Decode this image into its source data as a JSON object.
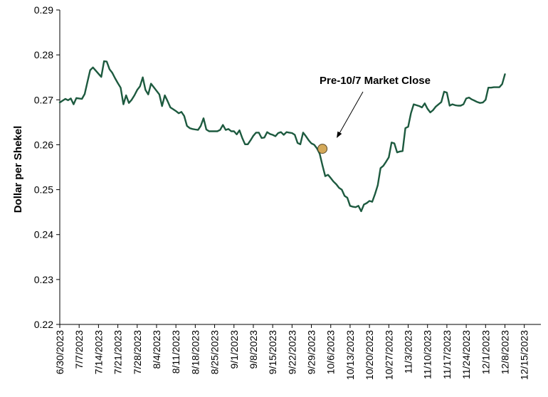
{
  "chart_data": {
    "type": "line",
    "ylabel": "Dollar per Shekel",
    "ylim": [
      0.22,
      0.29
    ],
    "yticks": [
      "0.22",
      "0.23",
      "0.24",
      "0.25",
      "0.26",
      "0.27",
      "0.28",
      "0.29"
    ],
    "x_range": [
      "2023-06-30",
      "2023-12-21"
    ],
    "xticks": [
      {
        "date": "2023-06-30",
        "label": "6/30/2023"
      },
      {
        "date": "2023-07-07",
        "label": "7/7/2023"
      },
      {
        "date": "2023-07-14",
        "label": "7/14/2023"
      },
      {
        "date": "2023-07-21",
        "label": "7/21/2023"
      },
      {
        "date": "2023-07-28",
        "label": "7/28/2023"
      },
      {
        "date": "2023-08-04",
        "label": "8/4/2023"
      },
      {
        "date": "2023-08-11",
        "label": "8/11/2023"
      },
      {
        "date": "2023-08-18",
        "label": "8/18/2023"
      },
      {
        "date": "2023-08-25",
        "label": "8/25/2023"
      },
      {
        "date": "2023-09-01",
        "label": "9/1/2023"
      },
      {
        "date": "2023-09-08",
        "label": "9/8/2023"
      },
      {
        "date": "2023-09-15",
        "label": "9/15/2023"
      },
      {
        "date": "2023-09-22",
        "label": "9/22/2023"
      },
      {
        "date": "2023-09-29",
        "label": "9/29/2023"
      },
      {
        "date": "2023-10-06",
        "label": "10/6/2023"
      },
      {
        "date": "2023-10-13",
        "label": "10/13/2023"
      },
      {
        "date": "2023-10-20",
        "label": "10/20/2023"
      },
      {
        "date": "2023-10-27",
        "label": "10/27/2023"
      },
      {
        "date": "2023-11-03",
        "label": "11/3/2023"
      },
      {
        "date": "2023-11-10",
        "label": "11/10/2023"
      },
      {
        "date": "2023-11-17",
        "label": "11/17/2023"
      },
      {
        "date": "2023-11-24",
        "label": "11/24/2023"
      },
      {
        "date": "2023-12-01",
        "label": "12/1/2023"
      },
      {
        "date": "2023-12-08",
        "label": "12/8/2023"
      },
      {
        "date": "2023-12-15",
        "label": "12/15/2023"
      }
    ],
    "grid": false,
    "legend": false,
    "series": [
      {
        "color": "#1d5a3f",
        "points": [
          [
            "2023-06-30",
            0.2694
          ],
          [
            "2023-07-01",
            0.2698
          ],
          [
            "2023-07-02",
            0.2702
          ],
          [
            "2023-07-03",
            0.2699
          ],
          [
            "2023-07-04",
            0.2703
          ],
          [
            "2023-07-05",
            0.269
          ],
          [
            "2023-07-06",
            0.2704
          ],
          [
            "2023-07-07",
            0.2703
          ],
          [
            "2023-07-08",
            0.2702
          ],
          [
            "2023-07-09",
            0.2713
          ],
          [
            "2023-07-10",
            0.274
          ],
          [
            "2023-07-11",
            0.2766
          ],
          [
            "2023-07-12",
            0.2772
          ],
          [
            "2023-07-13",
            0.2765
          ],
          [
            "2023-07-14",
            0.2758
          ],
          [
            "2023-07-15",
            0.2751
          ],
          [
            "2023-07-16",
            0.2786
          ],
          [
            "2023-07-17",
            0.2785
          ],
          [
            "2023-07-18",
            0.2768
          ],
          [
            "2023-07-19",
            0.276
          ],
          [
            "2023-07-20",
            0.2748
          ],
          [
            "2023-07-21",
            0.2737
          ],
          [
            "2023-07-22",
            0.2727
          ],
          [
            "2023-07-23",
            0.269
          ],
          [
            "2023-07-24",
            0.271
          ],
          [
            "2023-07-25",
            0.2693
          ],
          [
            "2023-07-26",
            0.27
          ],
          [
            "2023-07-27",
            0.271
          ],
          [
            "2023-07-28",
            0.2722
          ],
          [
            "2023-07-29",
            0.273
          ],
          [
            "2023-07-30",
            0.275
          ],
          [
            "2023-07-31",
            0.2722
          ],
          [
            "2023-08-01",
            0.2712
          ],
          [
            "2023-08-02",
            0.2736
          ],
          [
            "2023-08-03",
            0.2728
          ],
          [
            "2023-08-04",
            0.272
          ],
          [
            "2023-08-05",
            0.2712
          ],
          [
            "2023-08-06",
            0.2686
          ],
          [
            "2023-08-07",
            0.271
          ],
          [
            "2023-08-08",
            0.2697
          ],
          [
            "2023-08-09",
            0.2683
          ],
          [
            "2023-08-10",
            0.2679
          ],
          [
            "2023-08-11",
            0.2675
          ],
          [
            "2023-08-12",
            0.267
          ],
          [
            "2023-08-13",
            0.2673
          ],
          [
            "2023-08-14",
            0.2664
          ],
          [
            "2023-08-15",
            0.2642
          ],
          [
            "2023-08-16",
            0.2637
          ],
          [
            "2023-08-17",
            0.2635
          ],
          [
            "2023-08-18",
            0.2634
          ],
          [
            "2023-08-19",
            0.2633
          ],
          [
            "2023-08-20",
            0.2642
          ],
          [
            "2023-08-21",
            0.2659
          ],
          [
            "2023-08-22",
            0.2634
          ],
          [
            "2023-08-23",
            0.263
          ],
          [
            "2023-08-24",
            0.263
          ],
          [
            "2023-08-25",
            0.263
          ],
          [
            "2023-08-26",
            0.263
          ],
          [
            "2023-08-27",
            0.2633
          ],
          [
            "2023-08-28",
            0.2644
          ],
          [
            "2023-08-29",
            0.2633
          ],
          [
            "2023-08-30",
            0.2635
          ],
          [
            "2023-08-31",
            0.263
          ],
          [
            "2023-09-01",
            0.263
          ],
          [
            "2023-09-02",
            0.2623
          ],
          [
            "2023-09-03",
            0.2632
          ],
          [
            "2023-09-04",
            0.2615
          ],
          [
            "2023-09-05",
            0.2601
          ],
          [
            "2023-09-06",
            0.2601
          ],
          [
            "2023-09-07",
            0.261
          ],
          [
            "2023-09-08",
            0.262
          ],
          [
            "2023-09-09",
            0.2627
          ],
          [
            "2023-09-10",
            0.2627
          ],
          [
            "2023-09-11",
            0.2615
          ],
          [
            "2023-09-12",
            0.2616
          ],
          [
            "2023-09-13",
            0.2628
          ],
          [
            "2023-09-14",
            0.2624
          ],
          [
            "2023-09-15",
            0.2622
          ],
          [
            "2023-09-16",
            0.2619
          ],
          [
            "2023-09-17",
            0.2626
          ],
          [
            "2023-09-18",
            0.2628
          ],
          [
            "2023-09-19",
            0.2622
          ],
          [
            "2023-09-20",
            0.2628
          ],
          [
            "2023-09-21",
            0.2627
          ],
          [
            "2023-09-22",
            0.2626
          ],
          [
            "2023-09-23",
            0.2622
          ],
          [
            "2023-09-24",
            0.2604
          ],
          [
            "2023-09-25",
            0.2601
          ],
          [
            "2023-09-26",
            0.2627
          ],
          [
            "2023-09-27",
            0.2619
          ],
          [
            "2023-09-28",
            0.261
          ],
          [
            "2023-09-29",
            0.2603
          ],
          [
            "2023-09-30",
            0.26
          ],
          [
            "2023-10-01",
            0.2592
          ],
          [
            "2023-10-02",
            0.258
          ],
          [
            "2023-10-03",
            0.2554
          ],
          [
            "2023-10-04",
            0.253
          ],
          [
            "2023-10-05",
            0.2533
          ],
          [
            "2023-10-06",
            0.2526
          ],
          [
            "2023-10-07",
            0.2518
          ],
          [
            "2023-10-08",
            0.2512
          ],
          [
            "2023-10-09",
            0.2504
          ],
          [
            "2023-10-10",
            0.25
          ],
          [
            "2023-10-11",
            0.2486
          ],
          [
            "2023-10-12",
            0.2482
          ],
          [
            "2023-10-13",
            0.2464
          ],
          [
            "2023-10-14",
            0.2462
          ],
          [
            "2023-10-15",
            0.2461
          ],
          [
            "2023-10-16",
            0.2464
          ],
          [
            "2023-10-17",
            0.2452
          ],
          [
            "2023-10-18",
            0.2467
          ],
          [
            "2023-10-19",
            0.247
          ],
          [
            "2023-10-20",
            0.2475
          ],
          [
            "2023-10-21",
            0.2473
          ],
          [
            "2023-10-22",
            0.249
          ],
          [
            "2023-10-23",
            0.251
          ],
          [
            "2023-10-24",
            0.2548
          ],
          [
            "2023-10-25",
            0.2553
          ],
          [
            "2023-10-26",
            0.2562
          ],
          [
            "2023-10-27",
            0.2572
          ],
          [
            "2023-10-28",
            0.2605
          ],
          [
            "2023-10-29",
            0.2603
          ],
          [
            "2023-10-30",
            0.2583
          ],
          [
            "2023-10-31",
            0.2585
          ],
          [
            "2023-11-01",
            0.2586
          ],
          [
            "2023-11-02",
            0.2637
          ],
          [
            "2023-11-03",
            0.264
          ],
          [
            "2023-11-04",
            0.267
          ],
          [
            "2023-11-05",
            0.269
          ],
          [
            "2023-11-06",
            0.2688
          ],
          [
            "2023-11-07",
            0.2686
          ],
          [
            "2023-11-08",
            0.2683
          ],
          [
            "2023-11-09",
            0.2692
          ],
          [
            "2023-11-10",
            0.268
          ],
          [
            "2023-11-11",
            0.2672
          ],
          [
            "2023-11-12",
            0.2677
          ],
          [
            "2023-11-13",
            0.2685
          ],
          [
            "2023-11-14",
            0.269
          ],
          [
            "2023-11-15",
            0.2695
          ],
          [
            "2023-11-16",
            0.2718
          ],
          [
            "2023-11-17",
            0.2716
          ],
          [
            "2023-11-18",
            0.2687
          ],
          [
            "2023-11-19",
            0.269
          ],
          [
            "2023-11-20",
            0.2688
          ],
          [
            "2023-11-21",
            0.2687
          ],
          [
            "2023-11-22",
            0.2687
          ],
          [
            "2023-11-23",
            0.269
          ],
          [
            "2023-11-24",
            0.2703
          ],
          [
            "2023-11-25",
            0.2705
          ],
          [
            "2023-11-26",
            0.2701
          ],
          [
            "2023-11-27",
            0.2698
          ],
          [
            "2023-11-28",
            0.2695
          ],
          [
            "2023-11-29",
            0.2693
          ],
          [
            "2023-11-30",
            0.2694
          ],
          [
            "2023-12-01",
            0.27
          ],
          [
            "2023-12-02",
            0.2727
          ],
          [
            "2023-12-03",
            0.2727
          ],
          [
            "2023-12-04",
            0.2728
          ],
          [
            "2023-12-05",
            0.2728
          ],
          [
            "2023-12-06",
            0.2728
          ],
          [
            "2023-12-07",
            0.2735
          ],
          [
            "2023-12-08",
            0.2757
          ]
        ]
      }
    ],
    "annotations": [
      {
        "text": "Pre-10/7 Market Close",
        "date": "2023-10-03",
        "value": 0.2591,
        "marker_color": "#d4a95a"
      }
    ]
  }
}
